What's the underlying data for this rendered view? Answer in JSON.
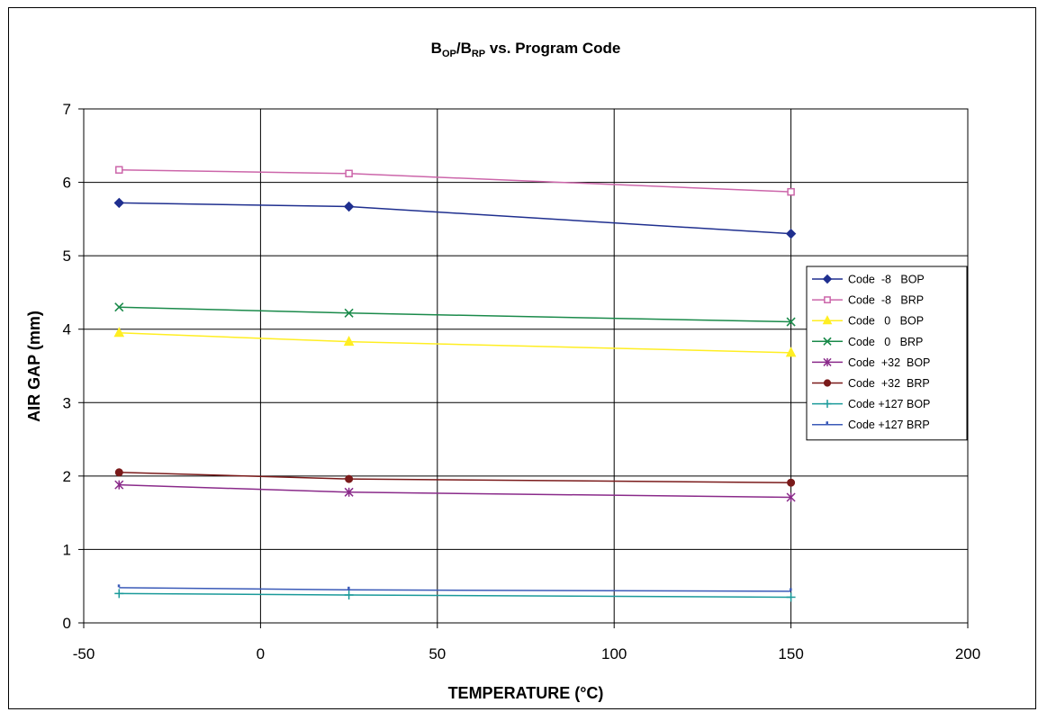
{
  "chart_data": {
    "type": "line",
    "title": {
      "text_b1": "B",
      "sub1": "OP",
      "slash": "/B",
      "sub2": "RP",
      "rest": " vs. Program Code"
    },
    "xlabel": "TEMPERATURE (°C)",
    "ylabel": "AIR GAP (mm)",
    "xlim": [
      -50,
      200
    ],
    "ylim": [
      0,
      7
    ],
    "xticks": [
      -50,
      0,
      50,
      100,
      150,
      200
    ],
    "yticks": [
      0,
      1,
      2,
      3,
      4,
      5,
      6,
      7
    ],
    "grid": true,
    "legend_position": "right",
    "x": [
      -40,
      25,
      150
    ],
    "series": [
      {
        "name": "Code  -8   BOP",
        "values": [
          5.72,
          5.67,
          5.3
        ],
        "color": "#1f2f8f",
        "marker": "diamond"
      },
      {
        "name": "Code  -8   BRP",
        "values": [
          6.17,
          6.12,
          5.87
        ],
        "color": "#cc66aa",
        "marker": "square-open"
      },
      {
        "name": "Code   0   BOP",
        "values": [
          3.95,
          3.83,
          3.68
        ],
        "color": "#ffee22",
        "marker": "triangle"
      },
      {
        "name": "Code   0   BRP",
        "values": [
          4.3,
          4.22,
          4.1
        ],
        "color": "#1a8a4a",
        "marker": "x"
      },
      {
        "name": "Code  +32  BOP",
        "values": [
          1.88,
          1.78,
          1.71
        ],
        "color": "#8a2a8a",
        "marker": "star"
      },
      {
        "name": "Code  +32  BRP",
        "values": [
          2.05,
          1.96,
          1.91
        ],
        "color": "#7a1a1a",
        "marker": "circle"
      },
      {
        "name": "Code +127 BOP",
        "values": [
          0.4,
          0.38,
          0.35
        ],
        "color": "#1a9a9a",
        "marker": "plus"
      },
      {
        "name": "Code +127 BRP",
        "values": [
          0.48,
          0.45,
          0.43
        ],
        "color": "#3a5ab8",
        "marker": "dot"
      }
    ]
  }
}
